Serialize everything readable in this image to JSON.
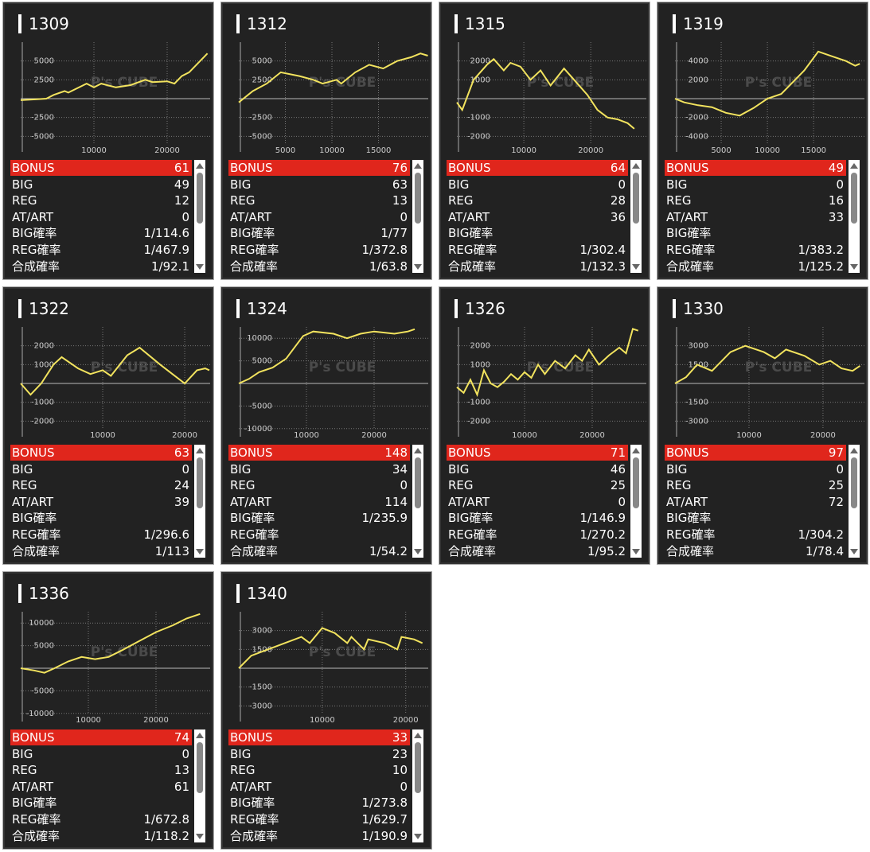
{
  "watermark": "P's CUBE",
  "chart_data": [
    {
      "type": "line",
      "title": "1309",
      "color": "#f2e35e",
      "grid": true,
      "x": [
        0,
        2000,
        3500,
        4500,
        6000,
        6500,
        9000,
        10000,
        11000,
        13000,
        15000,
        17000,
        18000,
        20000,
        21000,
        22000,
        23000,
        24500,
        25500
      ],
      "values": [
        -200,
        -100,
        0,
        500,
        1000,
        800,
        2000,
        1500,
        2000,
        1500,
        1800,
        2500,
        2200,
        2300,
        2000,
        3000,
        3500,
        5000,
        6000
      ],
      "xlim": [
        0,
        25870
      ],
      "ylim": [
        -7500,
        7500
      ],
      "xticks": [
        10000,
        20000
      ],
      "yticks": [
        5000,
        2500,
        -2500,
        -5000
      ],
      "table": {
        "rows": [
          [
            "BONUS",
            61
          ],
          [
            "BIG",
            49
          ],
          [
            "REG",
            12
          ],
          [
            "AT/ART",
            0
          ],
          [
            "BIG確率",
            "1/114.6"
          ],
          [
            "REG確率",
            "1/467.9"
          ],
          [
            "合成確率",
            "1/92.1"
          ]
        ]
      }
    },
    {
      "type": "line",
      "title": "1312",
      "color": "#f2e35e",
      "grid": true,
      "x": [
        0,
        1500,
        3000,
        4500,
        6500,
        8000,
        9000,
        10500,
        11000,
        12500,
        14000,
        15500,
        17000,
        18500,
        19500,
        20300
      ],
      "values": [
        -500,
        1000,
        2000,
        3500,
        3000,
        2500,
        2000,
        2500,
        2000,
        3500,
        4500,
        4000,
        5000,
        5500,
        6000,
        5700
      ],
      "xlim": [
        0,
        20340
      ],
      "ylim": [
        -7500,
        7500
      ],
      "xticks": [
        5000,
        10000,
        15000
      ],
      "yticks": [
        5000,
        2500,
        -2500,
        -5000
      ],
      "table": {
        "rows": [
          [
            "BONUS",
            76
          ],
          [
            "BIG",
            63
          ],
          [
            "REG",
            13
          ],
          [
            "AT/ART",
            0
          ],
          [
            "BIG確率",
            "1/77"
          ],
          [
            "REG確率",
            "1/372.8"
          ],
          [
            "合成確率",
            "1/63.8"
          ]
        ]
      }
    },
    {
      "type": "line",
      "title": "1315",
      "color": "#f2e35e",
      "grid": true,
      "x": [
        0,
        800,
        2500,
        4500,
        5500,
        7000,
        8000,
        9500,
        11000,
        12500,
        14000,
        16000,
        17500,
        19500,
        21000,
        22500,
        24000,
        25500,
        26500
      ],
      "values": [
        -200,
        -600,
        1000,
        1800,
        2100,
        1500,
        1900,
        1700,
        1000,
        1500,
        700,
        1600,
        1000,
        200,
        -600,
        -1000,
        -1100,
        -1300,
        -1600
      ],
      "xlim": [
        0,
        28300
      ],
      "ylim": [
        -3000,
        3000
      ],
      "xticks": [
        10000,
        20000
      ],
      "yticks": [
        2000,
        1000,
        -1000,
        -2000
      ],
      "table": {
        "rows": [
          [
            "BONUS",
            64
          ],
          [
            "BIG",
            0
          ],
          [
            "REG",
            28
          ],
          [
            "AT/ART",
            36
          ],
          [
            "BIG確率"
          ],
          [
            "REG確率",
            "1/302.4"
          ],
          [
            "合成確率",
            "1/132.3"
          ]
        ]
      }
    },
    {
      "type": "line",
      "title": "1319",
      "color": "#f2e35e",
      "grid": true,
      "x": [
        0,
        1000,
        2500,
        4000,
        5500,
        7000,
        8500,
        10000,
        11500,
        12500,
        14000,
        15500,
        17000,
        18500,
        19500,
        20000
      ],
      "values": [
        0,
        -400,
        -700,
        -900,
        -1500,
        -1800,
        -1000,
        0,
        500,
        1500,
        3000,
        5000,
        4500,
        4000,
        3500,
        3700
      ],
      "xlim": [
        0,
        20500
      ],
      "ylim": [
        -6000,
        6000
      ],
      "xticks": [
        5000,
        10000,
        15000
      ],
      "yticks": [
        4000,
        2000,
        -2000,
        -4000
      ],
      "table": {
        "rows": [
          [
            "BONUS",
            49
          ],
          [
            "BIG",
            0
          ],
          [
            "REG",
            16
          ],
          [
            "AT/ART",
            33
          ],
          [
            "BIG確率"
          ],
          [
            "REG確率",
            "1/383.2"
          ],
          [
            "合成確率",
            "1/125.2"
          ]
        ]
      }
    },
    {
      "type": "line",
      "title": "1322",
      "color": "#f2e35e",
      "grid": true,
      "x": [
        0,
        1200,
        2500,
        4000,
        5000,
        7000,
        8500,
        10000,
        11000,
        13000,
        14500,
        17000,
        18500,
        20000,
        21500,
        22500,
        23000
      ],
      "values": [
        0,
        -600,
        0,
        1000,
        1400,
        800,
        500,
        700,
        400,
        1500,
        1900,
        1000,
        500,
        0,
        700,
        800,
        700
      ],
      "xlim": [
        0,
        23100
      ],
      "ylim": [
        -3000,
        3000
      ],
      "xticks": [
        10000,
        20000
      ],
      "yticks": [
        2000,
        1000,
        -1000,
        -2000
      ],
      "table": {
        "rows": [
          [
            "BONUS",
            63
          ],
          [
            "BIG",
            0
          ],
          [
            "REG",
            24
          ],
          [
            "AT/ART",
            39
          ],
          [
            "BIG確率"
          ],
          [
            "REG確率",
            "1/296.6"
          ],
          [
            "合成確率",
            "1/113"
          ]
        ]
      }
    },
    {
      "type": "line",
      "title": "1324",
      "color": "#f2e35e",
      "grid": true,
      "x": [
        0,
        1500,
        3000,
        5000,
        7000,
        8500,
        9500,
        11000,
        14000,
        16000,
        18000,
        20000,
        23000,
        25000,
        26000
      ],
      "values": [
        0,
        1000,
        2500,
        3500,
        5500,
        8500,
        10500,
        11500,
        11000,
        10000,
        11000,
        11500,
        11000,
        11500,
        12000
      ],
      "xlim": [
        0,
        28000
      ],
      "ylim": [
        -12500,
        12500
      ],
      "xticks": [
        10000,
        20000
      ],
      "yticks": [
        10000,
        5000,
        -5000,
        -10000
      ],
      "table": {
        "rows": [
          [
            "BONUS",
            148
          ],
          [
            "BIG",
            34
          ],
          [
            "REG",
            0
          ],
          [
            "AT/ART",
            114
          ],
          [
            "BIG確率",
            "1/235.9"
          ],
          [
            "REG確率"
          ],
          [
            "合成確率",
            "1/54.2"
          ]
        ]
      }
    },
    {
      "type": "line",
      "title": "1326",
      "color": "#f2e35e",
      "grid": true,
      "x": [
        0,
        1000,
        2000,
        3000,
        4000,
        5000,
        6000,
        7000,
        8000,
        9000,
        10000,
        11000,
        12000,
        13000,
        14500,
        16000,
        17500,
        18500,
        19500,
        21000,
        22500,
        24000,
        25000,
        26000,
        26800
      ],
      "values": [
        -200,
        -500,
        200,
        -600,
        700,
        0,
        -200,
        100,
        500,
        200,
        600,
        300,
        1000,
        500,
        1200,
        800,
        1500,
        1200,
        1800,
        1000,
        1500,
        1900,
        1600,
        2900,
        2800
      ],
      "xlim": [
        0,
        28000
      ],
      "ylim": [
        -3000,
        3000
      ],
      "xticks": [
        10000,
        20000
      ],
      "yticks": [
        2000,
        1000,
        -1000,
        -2000
      ],
      "table": {
        "rows": [
          [
            "BONUS",
            71
          ],
          [
            "BIG",
            46
          ],
          [
            "REG",
            25
          ],
          [
            "AT/ART",
            0
          ],
          [
            "BIG確率",
            "1/146.9"
          ],
          [
            "REG確率",
            "1/270.2"
          ],
          [
            "合成確率",
            "1/95.2"
          ]
        ]
      }
    },
    {
      "type": "line",
      "title": "1330",
      "color": "#f2e35e",
      "grid": true,
      "x": [
        0,
        1500,
        3000,
        5000,
        7500,
        9500,
        12000,
        13500,
        15000,
        17500,
        19500,
        21000,
        22500,
        24000,
        25000
      ],
      "values": [
        0,
        500,
        1500,
        1000,
        2500,
        3000,
        2500,
        2000,
        2700,
        2200,
        1500,
        1800,
        1200,
        1000,
        1400
      ],
      "xlim": [
        0,
        25600
      ],
      "ylim": [
        -4500,
        4500
      ],
      "xticks": [
        10000,
        20000
      ],
      "yticks": [
        3000,
        1500,
        -1500,
        -3000
      ],
      "table": {
        "rows": [
          [
            "BONUS",
            97
          ],
          [
            "BIG",
            0
          ],
          [
            "REG",
            25
          ],
          [
            "AT/ART",
            72
          ],
          [
            "BIG確率"
          ],
          [
            "REG確率",
            "1/304.2"
          ],
          [
            "合成確率",
            "1/78.4"
          ]
        ]
      }
    },
    {
      "type": "line",
      "title": "1336",
      "color": "#f2e35e",
      "grid": true,
      "x": [
        0,
        2000,
        3500,
        5000,
        7000,
        9000,
        11000,
        13000,
        15000,
        17500,
        20000,
        22500,
        24500,
        26500
      ],
      "values": [
        0,
        -500,
        -1000,
        0,
        1500,
        2500,
        2000,
        2500,
        4000,
        6000,
        8000,
        9500,
        11000,
        12000
      ],
      "xlim": [
        0,
        28000
      ],
      "ylim": [
        -12500,
        12500
      ],
      "xticks": [
        10000,
        20000
      ],
      "yticks": [
        10000,
        5000,
        -5000,
        -10000
      ],
      "table": {
        "rows": [
          [
            "BONUS",
            74
          ],
          [
            "BIG",
            0
          ],
          [
            "REG",
            13
          ],
          [
            "AT/ART",
            61
          ],
          [
            "BIG確率"
          ],
          [
            "REG確率",
            "1/672.8"
          ],
          [
            "合成確率",
            "1/118.2"
          ]
        ]
      }
    },
    {
      "type": "line",
      "title": "1340",
      "color": "#f2e35e",
      "grid": true,
      "x": [
        0,
        1500,
        3500,
        5500,
        7500,
        8500,
        10000,
        11500,
        13000,
        13500,
        15000,
        15500,
        17500,
        19000,
        19500,
        21000,
        22000
      ],
      "values": [
        0,
        1000,
        1500,
        2000,
        2500,
        2000,
        3200,
        2800,
        2000,
        2500,
        1500,
        2300,
        2000,
        1500,
        2500,
        2300,
        2000
      ],
      "xlim": [
        0,
        22700
      ],
      "ylim": [
        -4500,
        4500
      ],
      "xticks": [
        10000,
        20000
      ],
      "yticks": [
        3000,
        1500,
        -1500,
        -3000
      ],
      "table": {
        "rows": [
          [
            "BONUS",
            33
          ],
          [
            "BIG",
            23
          ],
          [
            "REG",
            10
          ],
          [
            "AT/ART",
            0
          ],
          [
            "BIG確率",
            "1/273.8"
          ],
          [
            "REG確率",
            "1/629.7"
          ],
          [
            "合成確率",
            "1/190.9"
          ]
        ]
      }
    }
  ]
}
